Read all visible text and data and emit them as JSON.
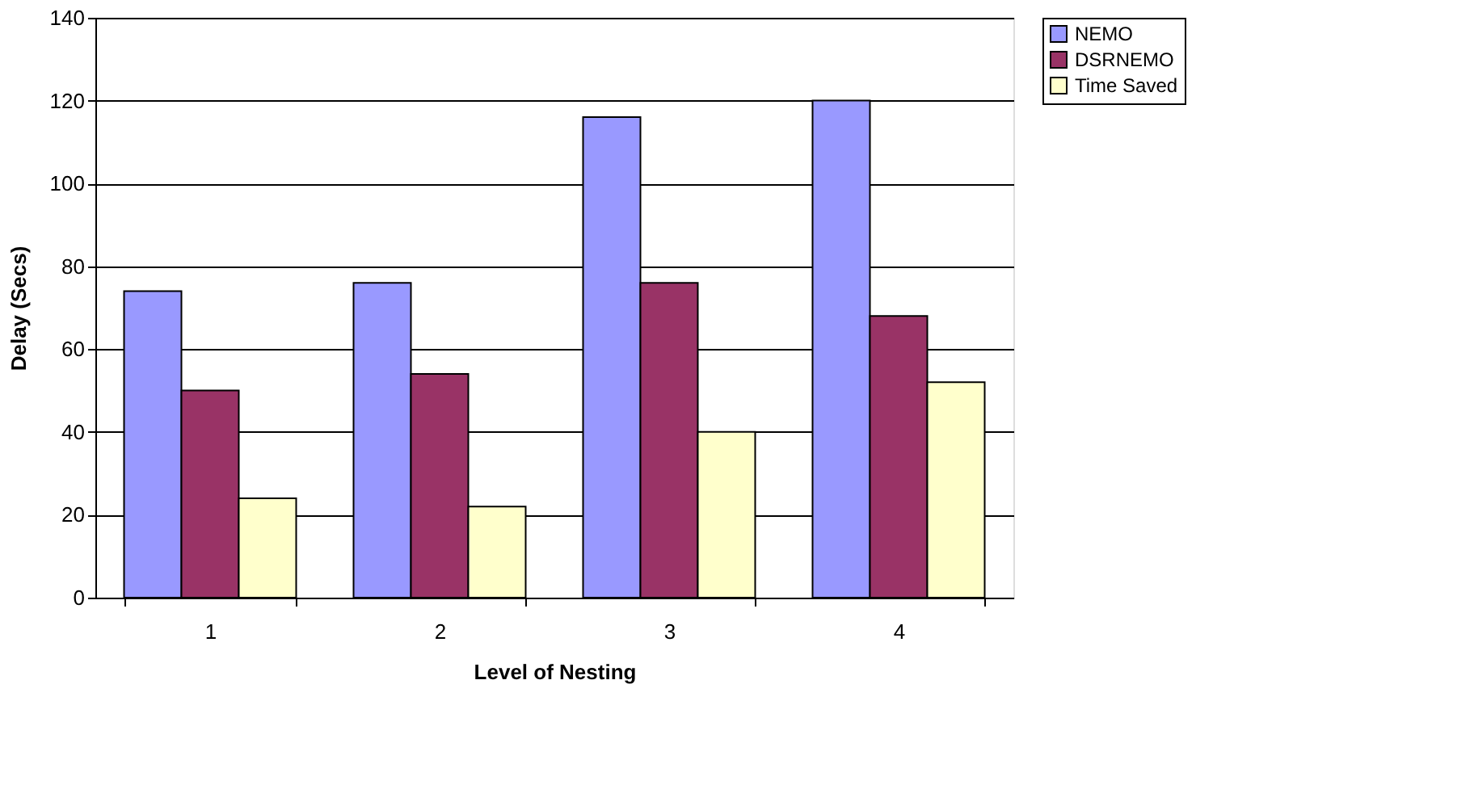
{
  "chart_data": {
    "type": "bar",
    "xlabel": "Level of Nesting",
    "ylabel": "Delay (Secs)",
    "categories": [
      "1",
      "2",
      "3",
      "4"
    ],
    "series": [
      {
        "name": "NEMO",
        "color": "#9999ff",
        "values": [
          74,
          76,
          116,
          120
        ]
      },
      {
        "name": "DSRNEMO",
        "color": "#993366",
        "values": [
          50,
          54,
          76,
          68
        ]
      },
      {
        "name": "Time Saved",
        "color": "#ffffcc",
        "values": [
          24,
          22,
          40,
          52
        ]
      }
    ],
    "ylim": [
      0,
      140
    ],
    "yticks": [
      0,
      20,
      40,
      60,
      80,
      100,
      120,
      140
    ],
    "grid": "y",
    "legend": "right"
  }
}
